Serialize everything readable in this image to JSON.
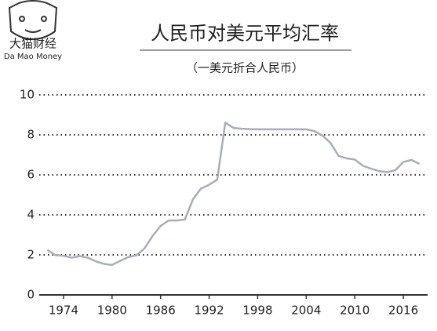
{
  "brand": {
    "name": "大猫财经",
    "tagline": "Da Mao Money"
  },
  "chart_data": {
    "type": "line",
    "title": "人民币对美元平均汇率",
    "subtitle": "（一美元折合人民币）",
    "x": [
      1972,
      1973,
      1974,
      1975,
      1976,
      1977,
      1978,
      1979,
      1980,
      1981,
      1982,
      1983,
      1984,
      1985,
      1986,
      1987,
      1988,
      1989,
      1990,
      1991,
      1992,
      1993,
      1994,
      1995,
      1996,
      1997,
      1998,
      1999,
      2000,
      2001,
      2002,
      2003,
      2004,
      2005,
      2006,
      2007,
      2008,
      2009,
      2010,
      2011,
      2012,
      2013,
      2014,
      2015,
      2016,
      2017,
      2018
    ],
    "series": [
      {
        "color": "#a9adb8",
        "values": [
          2.25,
          1.99,
          1.96,
          1.86,
          1.94,
          1.86,
          1.68,
          1.55,
          1.5,
          1.7,
          1.89,
          1.98,
          2.32,
          2.94,
          3.45,
          3.72,
          3.72,
          3.77,
          4.78,
          5.32,
          5.51,
          5.76,
          8.62,
          8.35,
          8.31,
          8.29,
          8.28,
          8.28,
          8.28,
          8.28,
          8.28,
          8.28,
          8.28,
          8.19,
          7.97,
          7.6,
          6.95,
          6.83,
          6.77,
          6.46,
          6.31,
          6.19,
          6.14,
          6.23,
          6.64,
          6.75,
          6.55
        ]
      }
    ],
    "xlim": [
      1971,
      2019
    ],
    "xticks": [
      1974,
      1980,
      1986,
      1992,
      1998,
      2004,
      2010,
      2016
    ],
    "ylim": [
      0,
      10
    ],
    "yticks": [
      0,
      2,
      4,
      6,
      8,
      10
    ],
    "grid": true
  }
}
